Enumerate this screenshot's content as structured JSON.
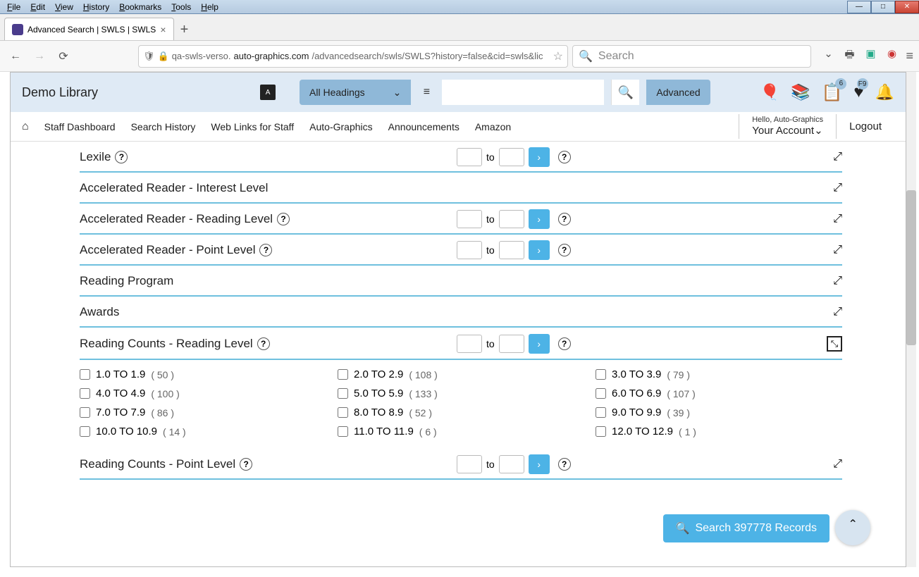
{
  "window": {
    "menus": [
      "File",
      "Edit",
      "View",
      "History",
      "Bookmarks",
      "Tools",
      "Help"
    ],
    "tab_title": "Advanced Search | SWLS | SWLS",
    "url_prefix": "qa-swls-verso.",
    "url_domain": "auto-graphics.com",
    "url_path": "/advancedsearch/swls/SWLS?history=false&cid=swls&lic",
    "search_placeholder": "Search"
  },
  "header": {
    "library_name": "Demo Library",
    "all_headings": "All Headings",
    "advanced_btn": "Advanced",
    "badge_list": "6",
    "badge_heart": "F9"
  },
  "nav": {
    "items": [
      "Staff Dashboard",
      "Search History",
      "Web Links for Staff",
      "Auto-Graphics",
      "Announcements",
      "Amazon"
    ],
    "hello": "Hello, Auto-Graphics",
    "your_account": "Your Account",
    "logout": "Logout"
  },
  "sections": [
    {
      "label": "Lexile",
      "help": true,
      "range": true,
      "expand": "↗"
    },
    {
      "label": "Accelerated Reader - Interest Level",
      "help": false,
      "range": false,
      "expand": "↗"
    },
    {
      "label": "Accelerated Reader - Reading Level",
      "help": true,
      "range": true,
      "expand": "↗"
    },
    {
      "label": "Accelerated Reader - Point Level",
      "help": true,
      "range": true,
      "expand": "↗"
    },
    {
      "label": "Reading Program",
      "help": false,
      "range": false,
      "expand": "↗"
    },
    {
      "label": "Awards",
      "help": false,
      "range": false,
      "expand": "↗"
    },
    {
      "label": "Reading Counts - Reading Level",
      "help": true,
      "range": true,
      "expand": "boxed"
    },
    {
      "label": "Reading Counts - Point Level",
      "help": true,
      "range": true,
      "expand": "↗"
    }
  ],
  "to_label": "to",
  "checks": [
    {
      "label": "1.0 TO 1.9",
      "count": "50"
    },
    {
      "label": "2.0 TO 2.9",
      "count": "108"
    },
    {
      "label": "3.0 TO 3.9",
      "count": "79"
    },
    {
      "label": "4.0 TO 4.9",
      "count": "100"
    },
    {
      "label": "5.0 TO 5.9",
      "count": "133"
    },
    {
      "label": "6.0 TO 6.9",
      "count": "107"
    },
    {
      "label": "7.0 TO 7.9",
      "count": "86"
    },
    {
      "label": "8.0 TO 8.9",
      "count": "52"
    },
    {
      "label": "9.0 TO 9.9",
      "count": "39"
    },
    {
      "label": "10.0 TO 10.9",
      "count": "14"
    },
    {
      "label": "11.0 TO 11.9",
      "count": "6"
    },
    {
      "label": "12.0 TO 12.9",
      "count": "1"
    }
  ],
  "search_records": "Search 397778 Records"
}
